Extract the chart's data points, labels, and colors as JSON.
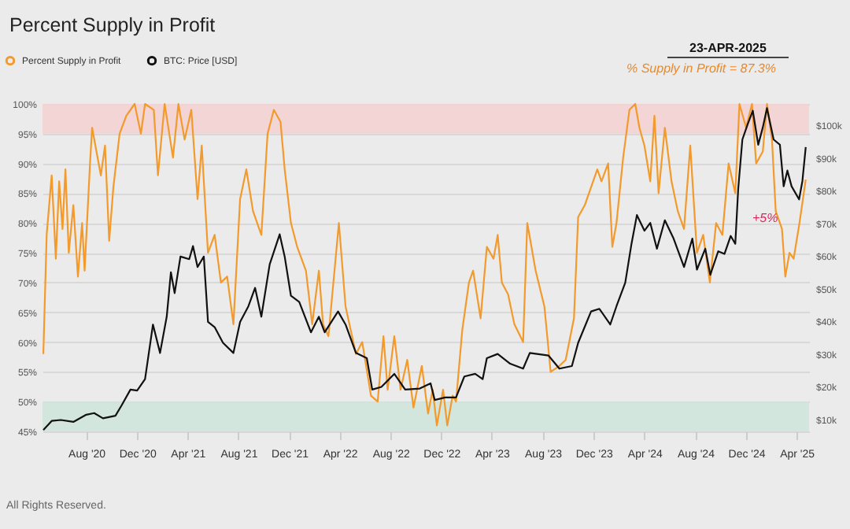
{
  "chart_data": {
    "type": "line",
    "title": "Percent Supply in Profit",
    "x": [
      "2020-04-20",
      "2020-04-28",
      "2020-05-10",
      "2020-05-20",
      "2020-05-28",
      "2020-06-05",
      "2020-06-12",
      "2020-06-20",
      "2020-07-01",
      "2020-07-12",
      "2020-07-22",
      "2020-07-28",
      "2020-08-10",
      "2020-08-15",
      "2020-09-05",
      "2020-09-15",
      "2020-09-25",
      "2020-10-05",
      "2020-10-20",
      "2020-11-05",
      "2020-11-25",
      "2020-12-10",
      "2020-12-20",
      "2021-01-10",
      "2021-01-20",
      "2021-02-05",
      "2021-02-25",
      "2021-03-10",
      "2021-03-25",
      "2021-04-10",
      "2021-04-25",
      "2021-05-05",
      "2021-05-20",
      "2021-06-05",
      "2021-06-20",
      "2021-07-05",
      "2021-07-20",
      "2021-08-05",
      "2021-08-20",
      "2021-09-05",
      "2021-09-25",
      "2021-10-10",
      "2021-10-25",
      "2021-11-10",
      "2021-11-20",
      "2021-12-05",
      "2021-12-20",
      "2022-01-10",
      "2022-01-25",
      "2022-02-10",
      "2022-02-20",
      "2022-03-05",
      "2022-03-30",
      "2022-04-15",
      "2022-05-10",
      "2022-05-25",
      "2022-06-15",
      "2022-07-01",
      "2022-07-15",
      "2022-07-25",
      "2022-08-10",
      "2022-08-25",
      "2022-09-10",
      "2022-09-25",
      "2022-10-15",
      "2022-10-30",
      "2022-11-10",
      "2022-11-20",
      "2022-12-05",
      "2022-12-15",
      "2022-12-28",
      "2023-01-05",
      "2023-01-20",
      "2023-02-05",
      "2023-02-15",
      "2023-03-05",
      "2023-03-20",
      "2023-04-05",
      "2023-04-15",
      "2023-04-25",
      "2023-05-10",
      "2023-05-25",
      "2023-06-15",
      "2023-06-25",
      "2023-07-15",
      "2023-08-05",
      "2023-08-20",
      "2023-09-10",
      "2023-09-25",
      "2023-10-15",
      "2023-10-25",
      "2023-11-10",
      "2023-11-25",
      "2023-12-10",
      "2023-12-20",
      "2024-01-05",
      "2024-01-15",
      "2024-01-25",
      "2024-02-10",
      "2024-02-25",
      "2024-03-10",
      "2024-03-20",
      "2024-04-01",
      "2024-04-15",
      "2024-04-25",
      "2024-05-05",
      "2024-05-20",
      "2024-06-05",
      "2024-06-20",
      "2024-07-05",
      "2024-07-20",
      "2024-08-05",
      "2024-08-20",
      "2024-09-05",
      "2024-09-20",
      "2024-10-05",
      "2024-10-20",
      "2024-11-05",
      "2024-11-15",
      "2024-12-01",
      "2024-12-15",
      "2024-12-25",
      "2025-01-10",
      "2025-01-20",
      "2025-02-01",
      "2025-02-10",
      "2025-02-25",
      "2025-03-05",
      "2025-03-15",
      "2025-03-25",
      "2025-04-08",
      "2025-04-23"
    ],
    "series": [
      {
        "name": "Percent Supply in Profit",
        "axis": "y",
        "color": "#f39a2c",
        "values": [
          58,
          78,
          88,
          74,
          87,
          79,
          89,
          75,
          83,
          71,
          80,
          72,
          90,
          96,
          88,
          93,
          77,
          86,
          95,
          98,
          100,
          95,
          100,
          99,
          88,
          100,
          91,
          100,
          94,
          99,
          84,
          93,
          75,
          78,
          70,
          71,
          63,
          84,
          89,
          82,
          78,
          95,
          99,
          97,
          89,
          80,
          76,
          72,
          63,
          72,
          63,
          61,
          80,
          66,
          58,
          60,
          51,
          50,
          61,
          52,
          61,
          52,
          57,
          49,
          56,
          48,
          52,
          46,
          52,
          46,
          51,
          50,
          62,
          70,
          72,
          64,
          76,
          74,
          78,
          70,
          68,
          63,
          60,
          80,
          72,
          66,
          55,
          56,
          57,
          64,
          81,
          83,
          86,
          89,
          87,
          90,
          76,
          80,
          91,
          99,
          100,
          96,
          93,
          87,
          98,
          85,
          96,
          87,
          82,
          79,
          93,
          75,
          78,
          70,
          80,
          78,
          90,
          85,
          100,
          96,
          100,
          90,
          92,
          100,
          94,
          82,
          79,
          71,
          75,
          74,
          80,
          87.3
        ]
      },
      {
        "name": "BTC: Price [USD]",
        "axis": "y2",
        "color": "#111111",
        "x": [
          "2020-04-20",
          "2020-05-10",
          "2020-06-01",
          "2020-07-01",
          "2020-08-01",
          "2020-08-20",
          "2020-09-10",
          "2020-10-10",
          "2020-10-25",
          "2020-11-15",
          "2020-12-01",
          "2020-12-20",
          "2021-01-08",
          "2021-01-25",
          "2021-02-10",
          "2021-02-20",
          "2021-03-01",
          "2021-03-15",
          "2021-04-05",
          "2021-04-14",
          "2021-04-25",
          "2021-05-10",
          "2021-05-20",
          "2021-06-05",
          "2021-06-25",
          "2021-07-20",
          "2021-08-05",
          "2021-08-25",
          "2021-09-10",
          "2021-09-25",
          "2021-10-15",
          "2021-11-08",
          "2021-11-20",
          "2021-12-05",
          "2021-12-25",
          "2022-01-22",
          "2022-02-10",
          "2022-02-24",
          "2022-03-28",
          "2022-04-15",
          "2022-05-10",
          "2022-06-05",
          "2022-06-18",
          "2022-07-10",
          "2022-08-10",
          "2022-09-05",
          "2022-10-10",
          "2022-11-05",
          "2022-11-15",
          "2022-12-10",
          "2023-01-05",
          "2023-01-25",
          "2023-02-20",
          "2023-03-10",
          "2023-03-20",
          "2023-04-15",
          "2023-05-15",
          "2023-06-15",
          "2023-07-01",
          "2023-08-15",
          "2023-09-10",
          "2023-10-10",
          "2023-10-25",
          "2023-11-25",
          "2023-12-15",
          "2024-01-10",
          "2024-01-25",
          "2024-02-15",
          "2024-03-01",
          "2024-03-14",
          "2024-04-01",
          "2024-04-15",
          "2024-05-01",
          "2024-05-20",
          "2024-06-10",
          "2024-07-05",
          "2024-07-25",
          "2024-08-05",
          "2024-08-25",
          "2024-09-06",
          "2024-09-25",
          "2024-10-10",
          "2024-10-25",
          "2024-11-05",
          "2024-11-12",
          "2024-11-22",
          "2024-12-05",
          "2024-12-17",
          "2024-12-30",
          "2025-01-10",
          "2025-01-20",
          "2025-02-05",
          "2025-02-20",
          "2025-03-01",
          "2025-03-10",
          "2025-03-20",
          "2025-04-07",
          "2025-04-15",
          "2025-04-23"
        ],
        "values": [
          6700,
          9500,
          9800,
          9200,
          11400,
          11900,
          10300,
          11100,
          14300,
          19100,
          18800,
          22300,
          39000,
          30300,
          41400,
          55000,
          48600,
          59800,
          59000,
          63000,
          56600,
          59800,
          39800,
          38200,
          33400,
          30300,
          39800,
          44600,
          50200,
          41400,
          57400,
          66600,
          59800,
          47800,
          45900,
          36600,
          41400,
          36600,
          43000,
          39000,
          30300,
          28700,
          19100,
          19900,
          23900,
          19100,
          19400,
          21000,
          15900,
          16700,
          16700,
          23100,
          23900,
          22300,
          28700,
          30000,
          27000,
          25500,
          30300,
          29500,
          25500,
          26300,
          33400,
          43000,
          43800,
          39000,
          44600,
          51800,
          63700,
          72500,
          67700,
          70100,
          62200,
          70900,
          65300,
          56600,
          65300,
          55800,
          62200,
          54200,
          61400,
          60600,
          66100,
          63700,
          80500,
          95600,
          100400,
          104400,
          94000,
          99300,
          105200,
          95600,
          94000,
          81300,
          86100,
          81300,
          77300,
          82900,
          93300
        ]
      }
    ],
    "xlim": [
      "2020-04-18",
      "2025-05-01"
    ],
    "xticks": [
      {
        "value": "2020-08-01",
        "label": "Aug '20"
      },
      {
        "value": "2020-12-01",
        "label": "Dec '20"
      },
      {
        "value": "2021-04-01",
        "label": "Apr '21"
      },
      {
        "value": "2021-08-01",
        "label": "Aug '21"
      },
      {
        "value": "2021-12-01",
        "label": "Dec '21"
      },
      {
        "value": "2022-04-01",
        "label": "Apr '22"
      },
      {
        "value": "2022-08-01",
        "label": "Aug '22"
      },
      {
        "value": "2022-12-01",
        "label": "Dec '22"
      },
      {
        "value": "2023-04-01",
        "label": "Apr '23"
      },
      {
        "value": "2023-08-01",
        "label": "Aug '23"
      },
      {
        "value": "2023-12-01",
        "label": "Dec '23"
      },
      {
        "value": "2024-04-01",
        "label": "Apr '24"
      },
      {
        "value": "2024-08-01",
        "label": "Aug '24"
      },
      {
        "value": "2024-12-01",
        "label": "Dec '24"
      },
      {
        "value": "2025-04-01",
        "label": "Apr '25"
      }
    ],
    "ylim": [
      45,
      100
    ],
    "yticks": [
      {
        "value": 45,
        "label": "45%"
      },
      {
        "value": 50,
        "label": "50%"
      },
      {
        "value": 55,
        "label": "55%"
      },
      {
        "value": 60,
        "label": "60%"
      },
      {
        "value": 65,
        "label": "65%"
      },
      {
        "value": 70,
        "label": "70%"
      },
      {
        "value": 75,
        "label": "75%"
      },
      {
        "value": 80,
        "label": "80%"
      },
      {
        "value": 85,
        "label": "85%"
      },
      {
        "value": 90,
        "label": "90%"
      },
      {
        "value": 95,
        "label": "95%"
      },
      {
        "value": 100,
        "label": "100%"
      }
    ],
    "y2lim": [
      6300,
      106500
    ],
    "y2ticks": [
      {
        "value": 10000,
        "label": "$10k"
      },
      {
        "value": 20000,
        "label": "$20k"
      },
      {
        "value": 30000,
        "label": "$30k"
      },
      {
        "value": 40000,
        "label": "$40k"
      },
      {
        "value": 50000,
        "label": "$50k"
      },
      {
        "value": 60000,
        "label": "$60k"
      },
      {
        "value": 70000,
        "label": "$70k"
      },
      {
        "value": 80000,
        "label": "$80k"
      },
      {
        "value": 90000,
        "label": "$90k"
      },
      {
        "value": 100000,
        "label": "$100k"
      }
    ],
    "bands": [
      {
        "axis": "y",
        "from": 95,
        "to": 100,
        "color": "#f3d3d1"
      },
      {
        "axis": "y",
        "from": 45,
        "to": 50,
        "color": "#cfe6dc"
      }
    ],
    "annotations": [
      "23-APR-2025",
      "% Supply in Profit = 87.3%",
      "+5%",
      "All Rights Reserved."
    ],
    "grid": "y",
    "legend": "top left"
  }
}
